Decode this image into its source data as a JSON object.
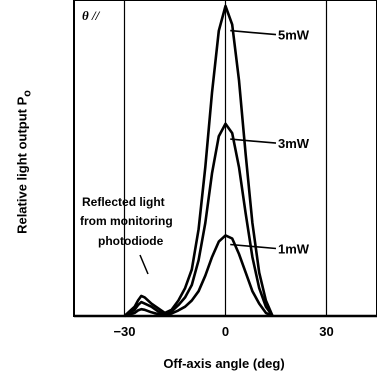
{
  "chart_data": {
    "type": "line",
    "corner_label": "θ //",
    "xlabel": "Off-axis angle (deg)",
    "ylabel": "Relative light output P",
    "ylabel_sub": "o",
    "xlim": [
      -45,
      45
    ],
    "ylim": [
      0,
      1.0
    ],
    "xticks": [
      -30,
      0,
      30
    ],
    "annotation": [
      "Reflected light",
      "from monitoring",
      "photodiode"
    ],
    "series": [
      {
        "name": "5mW",
        "x": [
          -30,
          -27,
          -26,
          -25,
          -24,
          -22,
          -20,
          -18,
          -16,
          -14,
          -12,
          -10,
          -8,
          -6,
          -4,
          -2,
          0,
          2,
          4,
          6,
          8,
          10,
          12,
          14
        ],
        "y": [
          0,
          0.03,
          0.05,
          0.065,
          0.06,
          0.04,
          0.025,
          0.01,
          0.02,
          0.05,
          0.09,
          0.15,
          0.28,
          0.48,
          0.72,
          0.92,
          1.0,
          0.94,
          0.76,
          0.52,
          0.3,
          0.14,
          0.05,
          0
        ]
      },
      {
        "name": "3mW",
        "x": [
          -30,
          -27,
          -26,
          -25,
          -24,
          -22,
          -20,
          -18,
          -16,
          -14,
          -12,
          -10,
          -8,
          -6,
          -4,
          -2,
          0,
          2,
          4,
          6,
          8,
          10,
          12,
          14
        ],
        "y": [
          0,
          0.02,
          0.035,
          0.045,
          0.04,
          0.03,
          0.015,
          0.005,
          0.015,
          0.035,
          0.06,
          0.1,
          0.18,
          0.3,
          0.46,
          0.58,
          0.62,
          0.59,
          0.48,
          0.33,
          0.19,
          0.09,
          0.03,
          0
        ]
      },
      {
        "name": "1mW",
        "x": [
          -30,
          -27,
          -26,
          -25,
          -24,
          -22,
          -20,
          -18,
          -16,
          -14,
          -12,
          -10,
          -8,
          -6,
          -4,
          -2,
          0,
          2,
          4,
          6,
          8,
          10,
          12,
          14
        ],
        "y": [
          0,
          0.01,
          0.018,
          0.022,
          0.02,
          0.012,
          0.006,
          0.002,
          0.008,
          0.018,
          0.03,
          0.05,
          0.08,
          0.13,
          0.19,
          0.24,
          0.26,
          0.25,
          0.2,
          0.14,
          0.08,
          0.04,
          0.01,
          0
        ]
      }
    ]
  }
}
